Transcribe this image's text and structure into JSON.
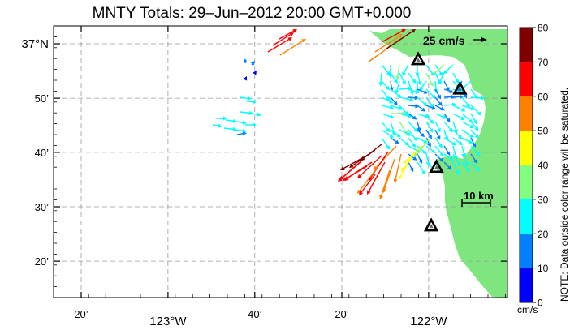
{
  "title": "MNTY Totals: 29–Jun–2012 20:00 GMT+0.000",
  "axes": {
    "y_labels": [
      {
        "text": "37°N",
        "lat": 37.0
      },
      {
        "text": "50’",
        "lat": 36.833
      },
      {
        "text": "40’",
        "lat": 36.667
      },
      {
        "text": "30’",
        "lat": 36.5
      },
      {
        "text": "20’",
        "lat": 36.333
      }
    ],
    "x_labels": [
      {
        "text": "20’",
        "lon": -123.333
      },
      {
        "text": "123°W",
        "lon": -123.0
      },
      {
        "text": "40’",
        "lon": -122.667
      },
      {
        "text": "20’",
        "lon": -122.333
      },
      {
        "text": "122°W",
        "lon": -122.0
      }
    ]
  },
  "reference_vector_label": "25 cm/s",
  "scale_bar_label": "10 km",
  "colorbar": {
    "ticks": [
      "0",
      "10",
      "20",
      "30",
      "40",
      "50",
      "60",
      "70",
      "80"
    ],
    "colors": [
      "#0000ff",
      "#0080ff",
      "#00ffff",
      "#80ff80",
      "#ffff00",
      "#ff8000",
      "#ff0000",
      "#800000"
    ],
    "unit": "cm/s",
    "note": "NOTE: Data outside color range will be saturated."
  },
  "land_color": "#7fe57f",
  "stations": [
    {
      "name": "station-north",
      "lon": -122.04,
      "lat": 36.95
    },
    {
      "name": "station-northeast",
      "lon": -121.88,
      "lat": 36.86
    },
    {
      "name": "station-mid",
      "lon": -121.97,
      "lat": 36.62
    },
    {
      "name": "station-south",
      "lon": -121.99,
      "lat": 36.44
    }
  ]
}
